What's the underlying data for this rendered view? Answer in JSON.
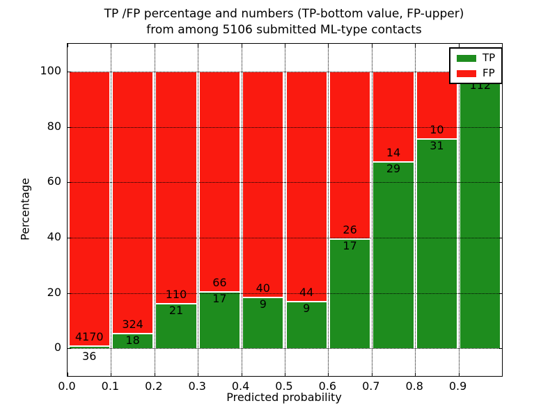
{
  "chart_data": {
    "type": "bar",
    "variant": "stacked-percentage-histogram",
    "title_lines": [
      "TP /FP percentage and numbers (TP-bottom value, FP-upper)",
      "from among 5106 submitted ML-type contacts"
    ],
    "xlabel": "Predicted probability",
    "ylabel": "Percentage",
    "xlim": [
      0.0,
      1.0
    ],
    "ylim": [
      -10,
      110
    ],
    "xtick_values": [
      0.0,
      0.1,
      0.2,
      0.3,
      0.4,
      0.5,
      0.6,
      0.7,
      0.8,
      0.9
    ],
    "xtick_labels": [
      "0.0",
      "0.1",
      "0.2",
      "0.3",
      "0.4",
      "0.5",
      "0.6",
      "0.7",
      "0.8",
      "0.9"
    ],
    "ytick_values": [
      0,
      20,
      40,
      60,
      80,
      100
    ],
    "bin_edges": [
      0.0,
      0.1,
      0.2,
      0.3,
      0.4,
      0.5,
      0.6,
      0.7,
      0.8,
      0.9,
      1.0
    ],
    "series": [
      {
        "name": "TP",
        "color": "#1e8c1e",
        "counts": [
          36,
          18,
          21,
          17,
          9,
          9,
          17,
          29,
          31,
          112
        ]
      },
      {
        "name": "FP",
        "color": "#fa1a10",
        "counts": [
          4170,
          324,
          110,
          66,
          40,
          44,
          26,
          14,
          10,
          null
        ]
      }
    ],
    "tp_percent": [
      0.86,
      5.26,
      16.03,
      20.48,
      18.37,
      16.98,
      39.53,
      67.44,
      75.61,
      97.4
    ],
    "legend": {
      "location": "upper right",
      "entries": [
        {
          "label": "TP",
          "color": "#1e8c1e"
        },
        {
          "label": "FP",
          "color": "#fa1a10"
        }
      ]
    },
    "grid": {
      "style": "dotted",
      "color": "#000000"
    }
  }
}
